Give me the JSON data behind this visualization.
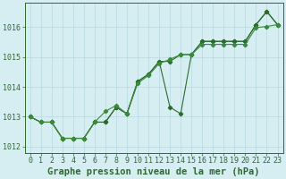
{
  "background_color": "#d6eef2",
  "plot_bg_color": "#d6eef2",
  "grid_color": "#b8d8e0",
  "line_color_main": "#2d6a2d",
  "line_color_alt": "#3a8a3a",
  "title": "Graphe pression niveau de la mer (hPa)",
  "xlim": [
    -0.5,
    23.5
  ],
  "ylim": [
    1011.8,
    1016.8
  ],
  "yticks": [
    1012,
    1013,
    1014,
    1015,
    1016
  ],
  "xticks": [
    0,
    1,
    2,
    3,
    4,
    5,
    6,
    7,
    8,
    9,
    10,
    11,
    12,
    13,
    14,
    15,
    16,
    17,
    18,
    19,
    20,
    21,
    22,
    23
  ],
  "y_main": [
    1013.0,
    1012.82,
    1012.82,
    1012.28,
    1012.28,
    1012.28,
    1012.82,
    1012.82,
    1013.32,
    1013.1,
    1014.18,
    1014.42,
    1014.85,
    1014.85,
    1015.08,
    1015.08,
    1015.52,
    1015.52,
    1015.52,
    1015.52,
    1015.52,
    1016.08,
    1016.52,
    1016.08
  ],
  "y_zigzag": [
    1013.0,
    1012.82,
    1012.82,
    1012.28,
    1012.28,
    1012.28,
    1012.82,
    1012.82,
    1013.32,
    1013.1,
    1014.18,
    1014.42,
    1014.85,
    1013.32,
    1013.1,
    1015.08,
    1015.52,
    1015.52,
    1015.52,
    1015.52,
    1015.52,
    1016.08,
    1016.52,
    1016.08
  ],
  "y_third": [
    1013.0,
    1012.82,
    1012.82,
    1012.28,
    1012.28,
    1012.28,
    1012.82,
    1013.18,
    1013.38,
    1013.1,
    1014.12,
    1014.38,
    1014.78,
    1014.92,
    1015.08,
    1015.08,
    1015.42,
    1015.42,
    1015.42,
    1015.42,
    1015.42,
    1015.98,
    1016.02,
    1016.08
  ],
  "title_fontsize": 7.5,
  "tick_fontsize": 6.0,
  "title_color": "#2d6a2d",
  "title_fontweight": "bold"
}
